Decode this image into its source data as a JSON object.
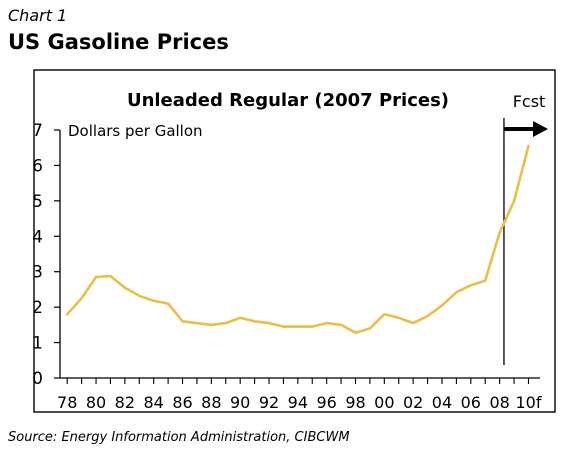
{
  "header": {
    "kicker": "Chart 1",
    "title": "US Gasoline Prices"
  },
  "footer": {
    "source": "Source: Energy Information Administration, CIBCWM"
  },
  "chart_data": {
    "type": "line",
    "title": "Unleaded Regular (2007 Prices)",
    "ylabel": "Dollars per Gallon",
    "xlabel": "",
    "ylim": [
      0,
      7
    ],
    "yticks": [
      "0",
      "1",
      "2",
      "3",
      "4",
      "5",
      "6",
      "7"
    ],
    "xtick_labels": [
      "78",
      "80",
      "82",
      "84",
      "86",
      "88",
      "90",
      "92",
      "94",
      "96",
      "98",
      "00",
      "02",
      "04",
      "06",
      "08",
      "10f"
    ],
    "grid": false,
    "line_color": "#e9bf45",
    "forecast": {
      "label": "Fcst",
      "start_year": 2008.3
    },
    "series": [
      {
        "x": [
          1978,
          1979,
          1980,
          1981,
          1982,
          1983,
          1984,
          1985,
          1986,
          1987,
          1988,
          1989,
          1990,
          1991,
          1992,
          1993,
          1994,
          1995,
          1996,
          1997,
          1998,
          1999,
          2000,
          2001,
          2002,
          2003,
          2004,
          2005,
          2006,
          2007,
          2008,
          2009,
          2010
        ],
        "values": [
          1.8,
          2.25,
          2.85,
          2.88,
          2.55,
          2.32,
          2.18,
          2.1,
          1.6,
          1.55,
          1.5,
          1.55,
          1.7,
          1.6,
          1.55,
          1.45,
          1.45,
          1.45,
          1.55,
          1.5,
          1.28,
          1.4,
          1.8,
          1.7,
          1.55,
          1.75,
          2.05,
          2.42,
          2.62,
          2.75,
          4.1,
          5.0,
          6.55
        ]
      }
    ]
  }
}
